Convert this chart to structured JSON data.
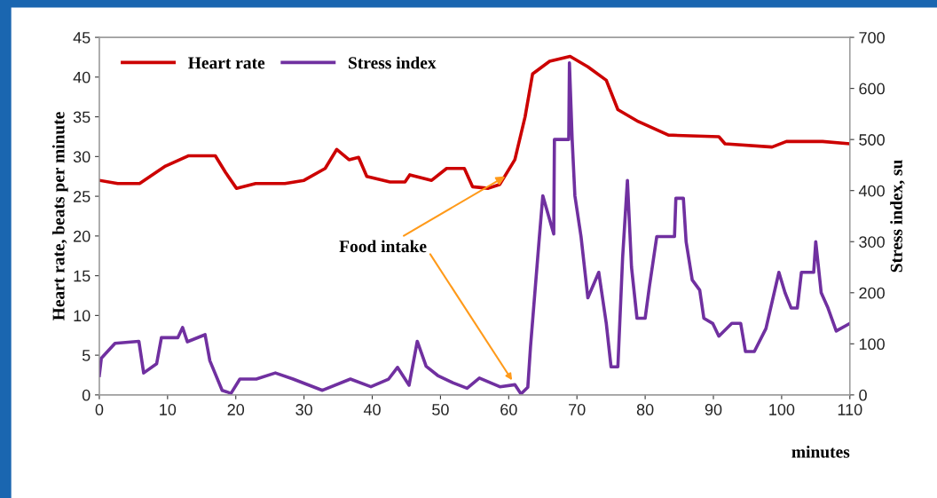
{
  "chart_data": {
    "type": "line",
    "xlabel": "minutes",
    "ylabel": "Heart rate, beats per minute",
    "y2label": "Stress index, su",
    "xlim": [
      0,
      110
    ],
    "xticks": [
      0,
      10,
      20,
      30,
      40,
      50,
      60,
      70,
      80,
      90,
      100,
      110
    ],
    "ylim": [
      0,
      45
    ],
    "yticks": [
      0,
      5,
      10,
      15,
      20,
      25,
      30,
      35,
      40,
      45
    ],
    "y2lim": [
      0,
      700
    ],
    "y2ticks": [
      0,
      100,
      200,
      300,
      400,
      500,
      600,
      700
    ],
    "legend": "top left",
    "grid": false,
    "marker": "none",
    "line_style": "solid",
    "annotations": [
      {
        "text": "Food intake",
        "x": 59.5,
        "y": 27.5
      }
    ],
    "series": [
      {
        "name": "Heart rate",
        "color": "#cc0000",
        "x": [
          0,
          2.7,
          5.9,
          9.7,
          13.1,
          17,
          18.5,
          20.1,
          22.9,
          27.2,
          30,
          33.1,
          34.8,
          36.6,
          38,
          39.2,
          42.6,
          44.8,
          45.5,
          48.7,
          50.9,
          53.5,
          54.7,
          57,
          58.7,
          60.9,
          62.4,
          63.5,
          66,
          69,
          71.6,
          74.3,
          76,
          79,
          83.4,
          90.8,
          91.7,
          98.6,
          100.7,
          106,
          110
        ],
        "values": [
          27,
          26.6,
          26.6,
          28.8,
          30.1,
          30.1,
          28,
          26,
          26.6,
          26.6,
          27,
          28.5,
          30.9,
          29.6,
          29.9,
          27.5,
          26.8,
          26.8,
          27.7,
          27,
          28.5,
          28.5,
          26.2,
          26,
          26.5,
          29.6,
          35,
          40.4,
          42,
          42.6,
          41.3,
          39.6,
          35.9,
          34.4,
          32.7,
          32.5,
          31.6,
          31.2,
          31.9,
          31.9,
          31.6
        ]
      },
      {
        "name": "Stress index",
        "color": "#7030a0",
        "axis": "y2",
        "x": [
          0,
          0.3,
          2.3,
          5.8,
          6.5,
          8.4,
          9.1,
          11.5,
          12.2,
          12.9,
          15.5,
          16.2,
          18,
          19.3,
          20.6,
          23,
          25.8,
          28.4,
          32.7,
          36.8,
          39.8,
          42.4,
          43.7,
          45.4,
          46.6,
          47.9,
          49.6,
          51.8,
          53.9,
          55.7,
          58.7,
          60.9,
          61.8,
          62.8,
          63.2,
          64.5,
          65,
          66.6,
          66.7,
          68.8,
          68.9,
          69.3,
          69.7,
          70.6,
          71.6,
          73.2,
          74.3,
          75,
          76,
          76.7,
          77.4,
          78,
          78.8,
          80,
          80.6,
          81.7,
          84.3,
          84.5,
          85.6,
          86,
          86.9,
          88,
          88.6,
          89.9,
          90.8,
          92.7,
          94,
          94.7,
          96,
          97.7,
          99.6,
          100.5,
          101.4,
          102.3,
          102.9,
          104.7,
          105,
          105.8,
          106.8,
          108,
          110
        ],
        "values": [
          38,
          72,
          101,
          105,
          43,
          61,
          112,
          112,
          132,
          104,
          118,
          67,
          9,
          3,
          31,
          31,
          43,
          31,
          9,
          31,
          16,
          31,
          54,
          19,
          105,
          56,
          38,
          24,
          13,
          33,
          16,
          20,
          2,
          15,
          95,
          310,
          390,
          315,
          500,
          500,
          650,
          500,
          390,
          310,
          190,
          240,
          140,
          55,
          55,
          270,
          420,
          250,
          150,
          150,
          210,
          310,
          310,
          385,
          385,
          300,
          225,
          205,
          150,
          140,
          115,
          140,
          140,
          85,
          85,
          130,
          240,
          200,
          170,
          170,
          240,
          240,
          300,
          200,
          170,
          125,
          140
        ]
      }
    ]
  }
}
